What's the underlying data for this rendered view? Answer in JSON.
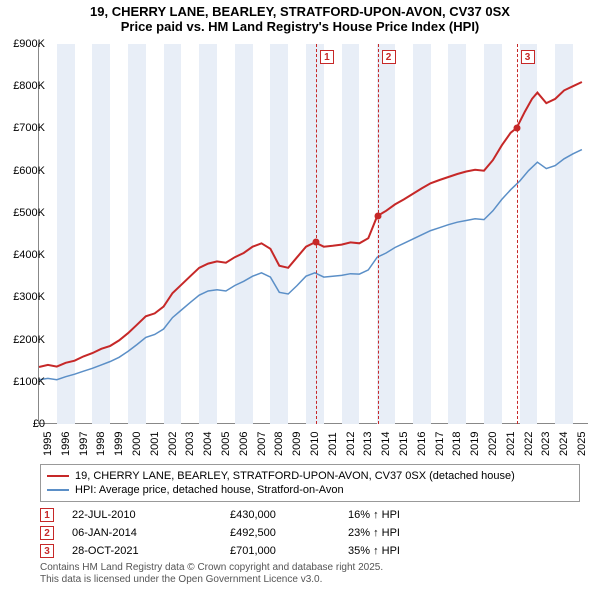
{
  "title": "19, CHERRY LANE, BEARLEY, STRATFORD-UPON-AVON, CV37 0SX",
  "subtitle": "Price paid vs. HM Land Registry's House Price Index (HPI)",
  "chart": {
    "type": "line",
    "background_color": "#ffffff",
    "grid_band_color": "#e8eef7",
    "axis_color": "#888888",
    "ylim": [
      0,
      900000
    ],
    "ytick_step": 100000,
    "y_ticks": [
      "£0",
      "£100K",
      "£200K",
      "£300K",
      "£400K",
      "£500K",
      "£600K",
      "£700K",
      "£800K",
      "£900K"
    ],
    "x_min": 1995,
    "x_max": 2025.9,
    "x_ticks": [
      1995,
      1996,
      1997,
      1998,
      1999,
      2000,
      2001,
      2002,
      2003,
      2004,
      2005,
      2006,
      2007,
      2008,
      2009,
      2010,
      2011,
      2012,
      2013,
      2014,
      2015,
      2016,
      2017,
      2018,
      2019,
      2020,
      2021,
      2022,
      2023,
      2024,
      2025
    ],
    "series": [
      {
        "name": "19, CHERRY LANE, BEARLEY, STRATFORD-UPON-AVON, CV37 0SX (detached house)",
        "color": "#c62828",
        "line_width": 2,
        "data": [
          [
            1995.0,
            135000
          ],
          [
            1995.5,
            140000
          ],
          [
            1996.0,
            136000
          ],
          [
            1996.5,
            145000
          ],
          [
            1997.0,
            150000
          ],
          [
            1997.5,
            160000
          ],
          [
            1998.0,
            168000
          ],
          [
            1998.5,
            178000
          ],
          [
            1999.0,
            185000
          ],
          [
            1999.5,
            198000
          ],
          [
            2000.0,
            215000
          ],
          [
            2000.5,
            235000
          ],
          [
            2001.0,
            255000
          ],
          [
            2001.5,
            262000
          ],
          [
            2002.0,
            278000
          ],
          [
            2002.5,
            310000
          ],
          [
            2003.0,
            330000
          ],
          [
            2003.5,
            350000
          ],
          [
            2004.0,
            370000
          ],
          [
            2004.5,
            380000
          ],
          [
            2005.0,
            385000
          ],
          [
            2005.5,
            382000
          ],
          [
            2006.0,
            395000
          ],
          [
            2006.5,
            405000
          ],
          [
            2007.0,
            420000
          ],
          [
            2007.5,
            428000
          ],
          [
            2008.0,
            415000
          ],
          [
            2008.5,
            375000
          ],
          [
            2009.0,
            370000
          ],
          [
            2009.5,
            395000
          ],
          [
            2010.0,
            420000
          ],
          [
            2010.5,
            430000
          ],
          [
            2011.0,
            420000
          ],
          [
            2011.5,
            422000
          ],
          [
            2012.0,
            425000
          ],
          [
            2012.5,
            430000
          ],
          [
            2013.0,
            428000
          ],
          [
            2013.5,
            440000
          ],
          [
            2014.0,
            492500
          ],
          [
            2014.5,
            505000
          ],
          [
            2015.0,
            520000
          ],
          [
            2015.5,
            532000
          ],
          [
            2016.0,
            545000
          ],
          [
            2016.5,
            558000
          ],
          [
            2017.0,
            570000
          ],
          [
            2017.5,
            578000
          ],
          [
            2018.0,
            585000
          ],
          [
            2018.5,
            592000
          ],
          [
            2019.0,
            598000
          ],
          [
            2019.5,
            602000
          ],
          [
            2020.0,
            600000
          ],
          [
            2020.5,
            625000
          ],
          [
            2021.0,
            660000
          ],
          [
            2021.5,
            690000
          ],
          [
            2021.83,
            701000
          ],
          [
            2022.3,
            740000
          ],
          [
            2022.7,
            770000
          ],
          [
            2023.0,
            785000
          ],
          [
            2023.5,
            760000
          ],
          [
            2024.0,
            770000
          ],
          [
            2024.5,
            790000
          ],
          [
            2025.0,
            800000
          ],
          [
            2025.5,
            810000
          ]
        ]
      },
      {
        "name": "HPI: Average price, detached house, Stratford-on-Avon",
        "color": "#5b8fc7",
        "line_width": 1.5,
        "data": [
          [
            1995.0,
            105000
          ],
          [
            1995.5,
            108000
          ],
          [
            1996.0,
            105000
          ],
          [
            1996.5,
            112000
          ],
          [
            1997.0,
            118000
          ],
          [
            1997.5,
            125000
          ],
          [
            1998.0,
            132000
          ],
          [
            1998.5,
            140000
          ],
          [
            1999.0,
            148000
          ],
          [
            1999.5,
            158000
          ],
          [
            2000.0,
            172000
          ],
          [
            2000.5,
            188000
          ],
          [
            2001.0,
            205000
          ],
          [
            2001.5,
            212000
          ],
          [
            2002.0,
            225000
          ],
          [
            2002.5,
            252000
          ],
          [
            2003.0,
            270000
          ],
          [
            2003.5,
            288000
          ],
          [
            2004.0,
            305000
          ],
          [
            2004.5,
            315000
          ],
          [
            2005.0,
            318000
          ],
          [
            2005.5,
            315000
          ],
          [
            2006.0,
            328000
          ],
          [
            2006.5,
            338000
          ],
          [
            2007.0,
            350000
          ],
          [
            2007.5,
            358000
          ],
          [
            2008.0,
            348000
          ],
          [
            2008.5,
            312000
          ],
          [
            2009.0,
            308000
          ],
          [
            2009.5,
            328000
          ],
          [
            2010.0,
            350000
          ],
          [
            2010.5,
            358000
          ],
          [
            2011.0,
            348000
          ],
          [
            2011.5,
            350000
          ],
          [
            2012.0,
            352000
          ],
          [
            2012.5,
            356000
          ],
          [
            2013.0,
            355000
          ],
          [
            2013.5,
            365000
          ],
          [
            2014.0,
            395000
          ],
          [
            2014.5,
            405000
          ],
          [
            2015.0,
            418000
          ],
          [
            2015.5,
            428000
          ],
          [
            2016.0,
            438000
          ],
          [
            2016.5,
            448000
          ],
          [
            2017.0,
            458000
          ],
          [
            2017.5,
            465000
          ],
          [
            2018.0,
            472000
          ],
          [
            2018.5,
            478000
          ],
          [
            2019.0,
            482000
          ],
          [
            2019.5,
            486000
          ],
          [
            2020.0,
            484000
          ],
          [
            2020.5,
            505000
          ],
          [
            2021.0,
            532000
          ],
          [
            2021.5,
            555000
          ],
          [
            2022.0,
            575000
          ],
          [
            2022.5,
            600000
          ],
          [
            2023.0,
            620000
          ],
          [
            2023.5,
            605000
          ],
          [
            2024.0,
            612000
          ],
          [
            2024.5,
            628000
          ],
          [
            2025.0,
            640000
          ],
          [
            2025.5,
            650000
          ]
        ]
      }
    ],
    "sale_markers": [
      {
        "num": "1",
        "year": 2010.56,
        "price": 430000
      },
      {
        "num": "2",
        "year": 2014.02,
        "price": 492500
      },
      {
        "num": "3",
        "year": 2021.83,
        "price": 701000
      }
    ]
  },
  "legend": {
    "items": [
      {
        "color": "#c62828",
        "label": "19, CHERRY LANE, BEARLEY, STRATFORD-UPON-AVON, CV37 0SX (detached house)"
      },
      {
        "color": "#5b8fc7",
        "label": "HPI: Average price, detached house, Stratford-on-Avon"
      }
    ]
  },
  "sales": [
    {
      "num": "1",
      "date": "22-JUL-2010",
      "price": "£430,000",
      "hpi": "16% ↑ HPI"
    },
    {
      "num": "2",
      "date": "06-JAN-2014",
      "price": "£492,500",
      "hpi": "23% ↑ HPI"
    },
    {
      "num": "3",
      "date": "28-OCT-2021",
      "price": "£701,000",
      "hpi": "35% ↑ HPI"
    }
  ],
  "footer": {
    "line1": "Contains HM Land Registry data © Crown copyright and database right 2025.",
    "line2": "This data is licensed under the Open Government Licence v3.0."
  }
}
